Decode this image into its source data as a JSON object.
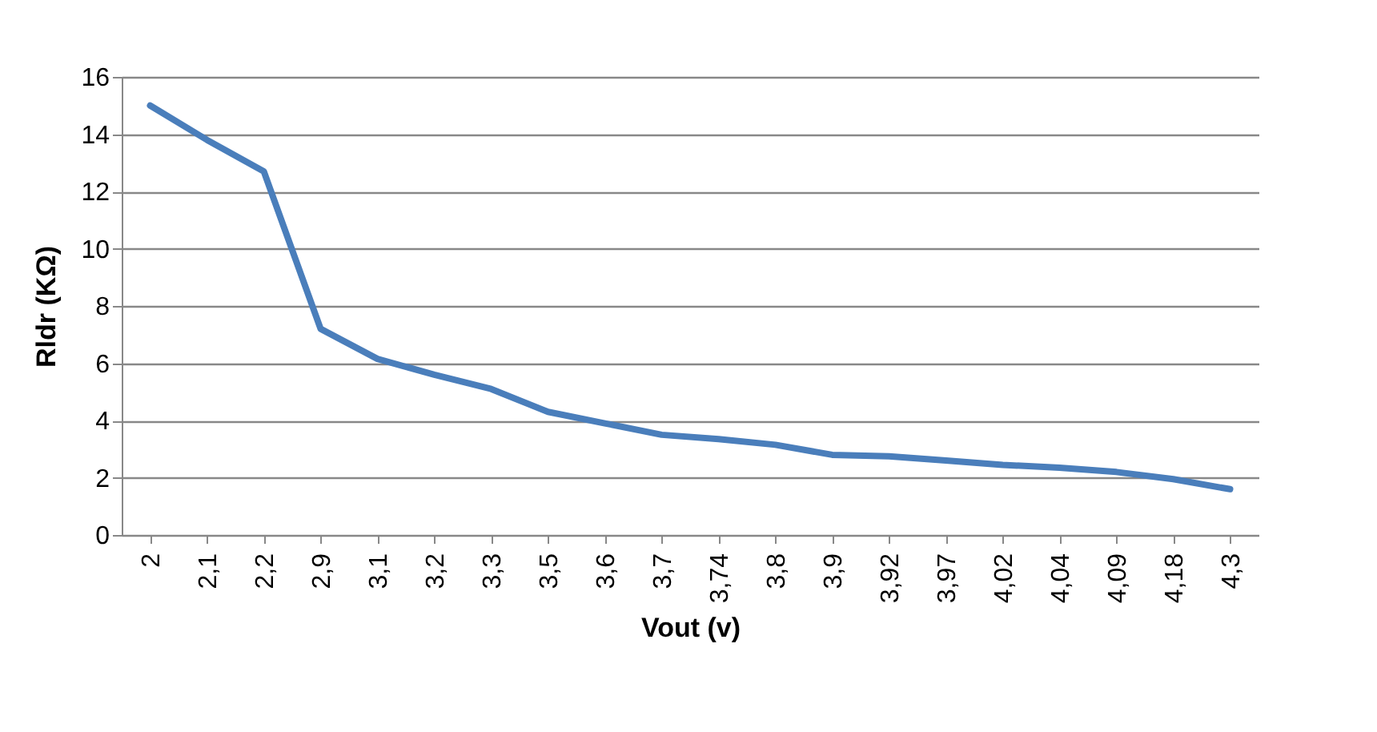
{
  "chart_data": {
    "type": "line",
    "xlabel": "Vout (v)",
    "ylabel": "Rldr (KΩ)",
    "categories": [
      "2",
      "2,1",
      "2,2",
      "2,9",
      "3,1",
      "3,2",
      "3,3",
      "3,5",
      "3,6",
      "3,7",
      "3,74",
      "3,8",
      "3,9",
      "3,92",
      "3,97",
      "4,02",
      "4,04",
      "4,09",
      "4,18",
      "4,3"
    ],
    "series": [
      {
        "color": "#4a7ebb",
        "values": [
          15,
          13.8,
          12.7,
          7.2,
          6.15,
          5.6,
          5.1,
          4.3,
          3.9,
          3.5,
          3.35,
          3.15,
          2.8,
          2.75,
          2.6,
          2.45,
          2.35,
          2.2,
          1.95,
          1.6
        ]
      }
    ],
    "ylim": [
      0,
      16
    ],
    "yticks": [
      0,
      2,
      4,
      6,
      8,
      10,
      12,
      14,
      16
    ],
    "grid": "y",
    "marker": "none",
    "line_style": "solid"
  }
}
